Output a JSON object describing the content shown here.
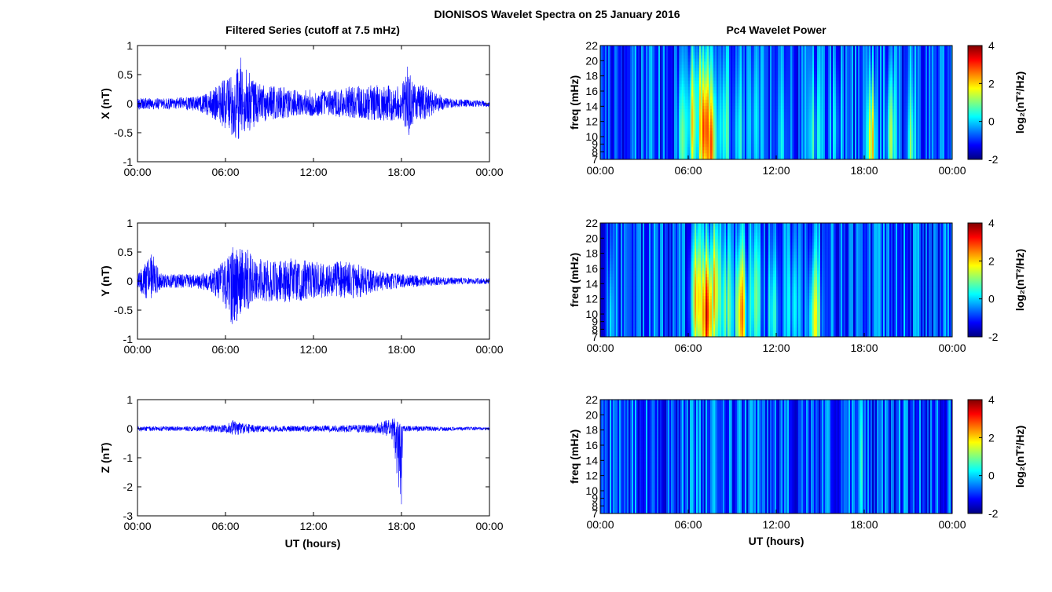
{
  "figure": {
    "title": "DIONISOS Wavelet Spectra on 25 January 2016",
    "left_title": "Filtered Series (cutoff at 7.5 mHz)",
    "right_title": "Pc4 Wavelet Power",
    "xlabel": "UT (hours)"
  },
  "chart_data": [
    {
      "type": "line",
      "component": "X",
      "ylabel": "X (nT)",
      "xlim": [
        0,
        24
      ],
      "ylim": [
        -1,
        1
      ],
      "xticks": [
        "00:00",
        "06:00",
        "12:00",
        "18:00",
        "00:00"
      ],
      "yticks": [
        "-1",
        "-0.5",
        "0",
        "0.5",
        "1"
      ],
      "envelope": {
        "x": [
          0,
          2,
          4,
          5,
          5.5,
          6,
          6.5,
          7,
          7.5,
          8,
          9,
          10,
          11,
          12,
          13,
          14,
          15,
          16,
          17,
          18,
          18.5,
          19,
          19.5,
          20,
          21,
          22,
          24
        ],
        "upper": [
          0.1,
          0.1,
          0.12,
          0.22,
          0.32,
          0.45,
          0.6,
          0.82,
          0.6,
          0.4,
          0.3,
          0.28,
          0.22,
          0.25,
          0.22,
          0.28,
          0.3,
          0.32,
          0.35,
          0.3,
          0.72,
          0.3,
          0.35,
          0.25,
          0.1,
          0.08,
          0.05
        ],
        "lower": [
          -0.1,
          -0.1,
          -0.12,
          -0.22,
          -0.32,
          -0.45,
          -0.6,
          -0.62,
          -0.55,
          -0.38,
          -0.28,
          -0.25,
          -0.2,
          -0.22,
          -0.2,
          -0.25,
          -0.25,
          -0.3,
          -0.3,
          -0.28,
          -0.55,
          -0.28,
          -0.3,
          -0.22,
          -0.08,
          -0.06,
          -0.05
        ]
      },
      "color": "#0000ff"
    },
    {
      "type": "line",
      "component": "Y",
      "ylabel": "Y (nT)",
      "xlim": [
        0,
        24
      ],
      "ylim": [
        -1,
        1
      ],
      "xticks": [
        "00:00",
        "06:00",
        "12:00",
        "18:00",
        "00:00"
      ],
      "yticks": [
        "-1",
        "-0.5",
        "0",
        "0.5",
        "1"
      ],
      "envelope": {
        "x": [
          0,
          0.5,
          1,
          1.5,
          2,
          4,
          5,
          6,
          6.5,
          7,
          7.5,
          8,
          9,
          10,
          11,
          12,
          13,
          14,
          15,
          16,
          17,
          18,
          20,
          22,
          24
        ],
        "upper": [
          0.12,
          0.3,
          0.5,
          0.15,
          0.12,
          0.12,
          0.18,
          0.35,
          0.6,
          0.67,
          0.55,
          0.4,
          0.35,
          0.4,
          0.38,
          0.35,
          0.3,
          0.35,
          0.32,
          0.2,
          0.15,
          0.12,
          0.08,
          0.06,
          0.05
        ],
        "lower": [
          -0.12,
          -0.3,
          -0.35,
          -0.15,
          -0.12,
          -0.12,
          -0.18,
          -0.45,
          -0.9,
          -0.6,
          -0.5,
          -0.38,
          -0.35,
          -0.38,
          -0.35,
          -0.32,
          -0.28,
          -0.3,
          -0.3,
          -0.2,
          -0.15,
          -0.12,
          -0.08,
          -0.06,
          -0.05
        ]
      },
      "color": "#0000ff"
    },
    {
      "type": "line",
      "component": "Z",
      "ylabel": "Z (nT)",
      "xlim": [
        0,
        24
      ],
      "ylim": [
        -3,
        1
      ],
      "xticks": [
        "00:00",
        "06:00",
        "12:00",
        "18:00",
        "00:00"
      ],
      "yticks": [
        "-3",
        "-2",
        "-1",
        "0",
        "1"
      ],
      "envelope": {
        "x": [
          0,
          4,
          6,
          6.5,
          7,
          8,
          10,
          12,
          14,
          16,
          17,
          17.2,
          18,
          18.1,
          20,
          24
        ],
        "upper": [
          0.08,
          0.08,
          0.15,
          0.3,
          0.2,
          0.12,
          0.1,
          0.1,
          0.12,
          0.15,
          0.3,
          0.5,
          0.15,
          0.1,
          0.08,
          0.05
        ],
        "lower": [
          -0.08,
          -0.08,
          -0.15,
          -0.25,
          -0.2,
          -0.12,
          -0.1,
          -0.1,
          -0.12,
          -0.15,
          -0.25,
          -0.2,
          -2.6,
          -0.1,
          -0.08,
          -0.05
        ]
      },
      "color": "#0000ff"
    },
    {
      "type": "heatmap",
      "component": "X",
      "ylabel": "freq (mHz)",
      "xlim": [
        0,
        24
      ],
      "ylim": [
        7,
        22
      ],
      "xticks": [
        "00:00",
        "06:00",
        "12:00",
        "18:00",
        "00:00"
      ],
      "yticks": [
        "7",
        "8",
        "9",
        "10",
        "12",
        "14",
        "16",
        "18",
        "20",
        "22"
      ],
      "colorbar": {
        "label": "log₂(nT²/Hz)",
        "range": [
          -2,
          4
        ],
        "ticks": [
          "-2",
          "0",
          "2",
          "4"
        ]
      },
      "features": [
        {
          "t": 7.1,
          "f": 11,
          "value": 3.6,
          "width_h": 0.35
        },
        {
          "t": 6.9,
          "f": 14,
          "value": 2.5,
          "width_h": 0.3
        },
        {
          "t": 7.5,
          "f": 9,
          "value": 3.0,
          "width_h": 0.3
        },
        {
          "t": 6.3,
          "f": 12,
          "value": 2.2,
          "width_h": 0.3
        },
        {
          "t": 5.6,
          "f": 10,
          "value": 1.5,
          "width_h": 0.25
        },
        {
          "t": 8.4,
          "f": 11,
          "value": 1.2,
          "width_h": 0.3
        },
        {
          "t": 9.4,
          "f": 10,
          "value": 0.8,
          "width_h": 0.3
        },
        {
          "t": 10.5,
          "f": 12,
          "value": 0.6,
          "width_h": 0.3
        },
        {
          "t": 12.4,
          "f": 9,
          "value": 0.5,
          "width_h": 0.3
        },
        {
          "t": 14.6,
          "f": 10,
          "value": 1.0,
          "width_h": 0.3
        },
        {
          "t": 16.1,
          "f": 11,
          "value": 0.8,
          "width_h": 0.3
        },
        {
          "t": 18.5,
          "f": 9,
          "value": 2.6,
          "width_h": 0.2
        },
        {
          "t": 19.8,
          "f": 10,
          "value": 2.0,
          "width_h": 0.2
        },
        {
          "t": 21.2,
          "f": 8,
          "value": 1.2,
          "width_h": 0.2
        }
      ]
    },
    {
      "type": "heatmap",
      "component": "Y",
      "ylabel": "freq (mHz)",
      "xlim": [
        0,
        24
      ],
      "ylim": [
        7,
        22
      ],
      "xticks": [
        "00:00",
        "06:00",
        "12:00",
        "18:00",
        "00:00"
      ],
      "yticks": [
        "7",
        "8",
        "9",
        "10",
        "12",
        "14",
        "16",
        "18",
        "20",
        "22"
      ],
      "colorbar": {
        "label": "log₂(nT²/Hz)",
        "range": [
          -2,
          4
        ],
        "ticks": [
          "-2",
          "0",
          "2",
          "4"
        ]
      },
      "features": [
        {
          "t": 0.7,
          "f": 9,
          "value": 1.0,
          "width_h": 0.15
        },
        {
          "t": 6.6,
          "f": 12,
          "value": 2.6,
          "width_h": 0.3
        },
        {
          "t": 7.3,
          "f": 10,
          "value": 3.8,
          "width_h": 0.35
        },
        {
          "t": 7.8,
          "f": 13,
          "value": 2.4,
          "width_h": 0.3
        },
        {
          "t": 8.6,
          "f": 11,
          "value": 1.5,
          "width_h": 0.3
        },
        {
          "t": 9.6,
          "f": 10,
          "value": 2.8,
          "width_h": 0.3
        },
        {
          "t": 10.6,
          "f": 12,
          "value": 1.4,
          "width_h": 0.3
        },
        {
          "t": 11.8,
          "f": 10,
          "value": 1.2,
          "width_h": 0.3
        },
        {
          "t": 13.2,
          "f": 11,
          "value": 1.0,
          "width_h": 0.3
        },
        {
          "t": 14.6,
          "f": 9,
          "value": 2.2,
          "width_h": 0.3
        },
        {
          "t": 20.8,
          "f": 8,
          "value": 0.2,
          "width_h": 0.15
        }
      ]
    },
    {
      "type": "heatmap",
      "component": "Z",
      "ylabel": "freq (mHz)",
      "xlim": [
        0,
        24
      ],
      "ylim": [
        7,
        22
      ],
      "xticks": [
        "00:00",
        "06:00",
        "12:00",
        "18:00",
        "00:00"
      ],
      "yticks": [
        "7",
        "8",
        "9",
        "10",
        "12",
        "14",
        "16",
        "18",
        "20",
        "22"
      ],
      "colorbar": {
        "label": "log₂(nT²/Hz)",
        "range": [
          -2,
          4
        ],
        "ticks": [
          "-2",
          "0",
          "2",
          "4"
        ]
      },
      "features": [
        {
          "t": 6.5,
          "f": 12,
          "value": 0.2,
          "width_h": 0.15
        },
        {
          "t": 7.3,
          "f": 10,
          "value": 0.0,
          "width_h": 0.15
        },
        {
          "t": 10.0,
          "f": 9,
          "value": -0.6,
          "width_h": 0.15
        },
        {
          "t": 14.8,
          "f": 8,
          "value": -0.5,
          "width_h": 0.15
        },
        {
          "t": 17.8,
          "f": 14,
          "value": 1.2,
          "width_h": 0.05
        }
      ]
    }
  ],
  "colors": {
    "line": "#0000ff",
    "axes": "#000000",
    "background": "#ffffff"
  },
  "colormap": "jet"
}
